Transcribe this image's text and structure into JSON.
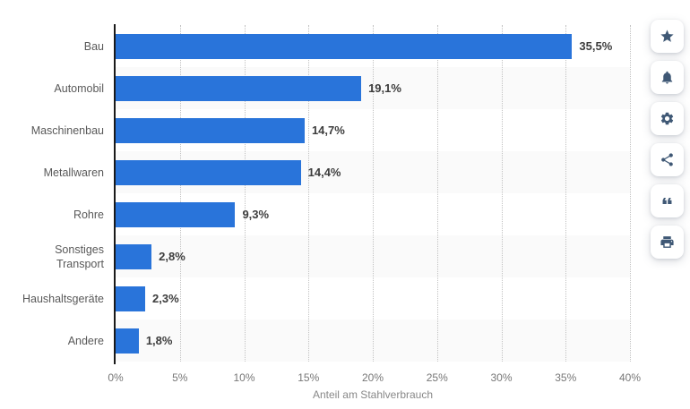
{
  "chart_data": {
    "type": "bar",
    "orientation": "horizontal",
    "categories": [
      "Bau",
      "Automobil",
      "Maschinenbau",
      "Metallwaren",
      "Rohre",
      "Sonstiges Transport",
      "Haushaltsgeräte",
      "Andere"
    ],
    "values": [
      35.5,
      19.1,
      14.7,
      14.4,
      9.3,
      2.8,
      2.3,
      1.8
    ],
    "value_labels": [
      "35,5%",
      "19,1%",
      "14,7%",
      "14,4%",
      "9,3%",
      "2,8%",
      "2,3%",
      "1,8%"
    ],
    "xlabel": "Anteil am Stahlverbrauch",
    "xlim": [
      0,
      40
    ],
    "x_tick_labels": [
      "0%",
      "5%",
      "10%",
      "15%",
      "20%",
      "25%",
      "30%",
      "35%",
      "40%"
    ],
    "grid": "vertical dotted gridlines at each 5% tick",
    "legend": "none",
    "row_banding": "alternate rows shaded"
  },
  "colors": {
    "bar": "#2974da",
    "row_band": "#fafafa",
    "axis_line": "#1a1a1a",
    "gridline": "#c2c2c2",
    "value_label": "#3d3d3d",
    "category_label": "#595959",
    "tick_label": "#777777",
    "icon": "#3f5875"
  },
  "sidebar": {
    "buttons": [
      {
        "name": "favorite",
        "icon": "star-icon"
      },
      {
        "name": "notifications",
        "icon": "bell-icon"
      },
      {
        "name": "settings",
        "icon": "gear-icon"
      },
      {
        "name": "share",
        "icon": "share-icon"
      },
      {
        "name": "cite",
        "icon": "quote-icon"
      },
      {
        "name": "print",
        "icon": "printer-icon"
      }
    ]
  }
}
